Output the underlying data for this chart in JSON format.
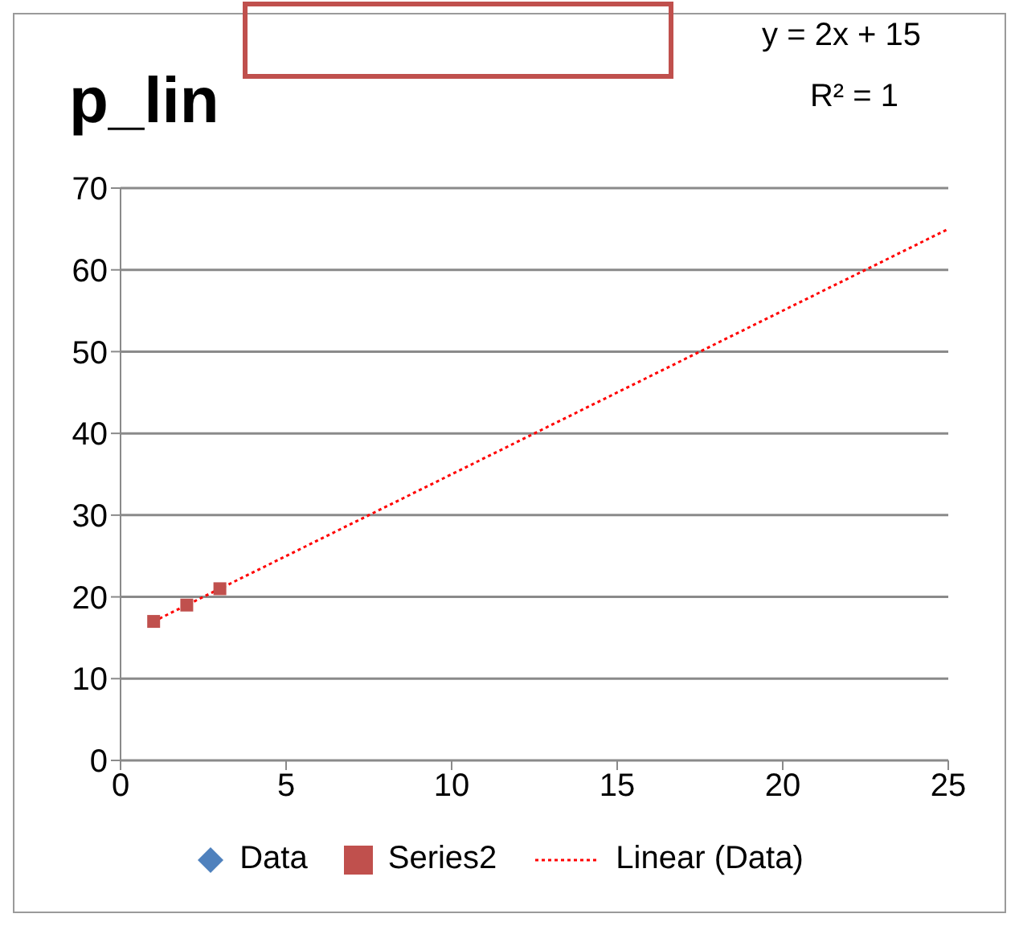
{
  "chart_data": {
    "type": "scatter",
    "title": "p_lin",
    "annotations": [
      "y = 2x + 15",
      "R² = 1"
    ],
    "series": [
      {
        "name": "Data",
        "type": "scatter",
        "marker": "diamond",
        "color": "#4f81bd"
      },
      {
        "name": "Series2",
        "type": "scatter",
        "marker": "square",
        "color": "#c0504d",
        "x": [
          1,
          2,
          3
        ],
        "values": [
          17,
          19,
          21
        ]
      },
      {
        "name": "Linear (Data)",
        "type": "line",
        "marker": "none",
        "line_style": "dotted",
        "color": "#ff0000",
        "x": [
          1,
          25
        ],
        "values": [
          17,
          65
        ]
      }
    ],
    "xlim": [
      0,
      25
    ],
    "xticks": [
      0,
      5,
      10,
      15,
      20,
      25
    ],
    "ylim": [
      0,
      70
    ],
    "yticks": [
      0,
      10,
      20,
      30,
      40,
      50,
      60,
      70
    ],
    "grid": "y",
    "legend": "bottom"
  }
}
